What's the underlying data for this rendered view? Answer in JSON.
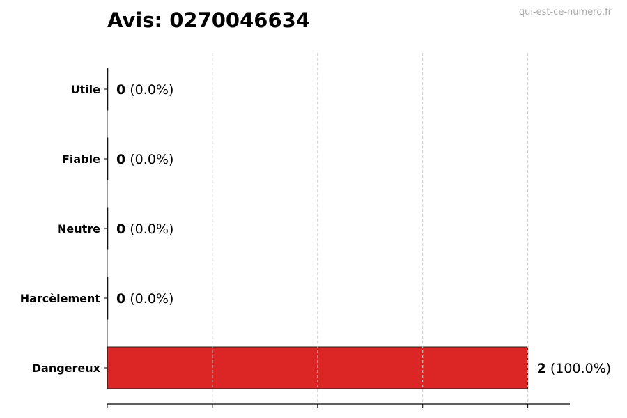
{
  "title": "Avis: 0270046634",
  "watermark": "qui-est-ce-numero.fr",
  "chart_data": {
    "type": "bar",
    "orientation": "horizontal",
    "title": "Avis: 0270046634",
    "categories": [
      "Utile",
      "Fiable",
      "Neutre",
      "Harcèlement",
      "Dangereux"
    ],
    "values": [
      0,
      0,
      0,
      0,
      2
    ],
    "labels": [
      {
        "count": "0",
        "pct": "(0.0%)"
      },
      {
        "count": "0",
        "pct": "(0.0%)"
      },
      {
        "count": "0",
        "pct": "(0.0%)"
      },
      {
        "count": "0",
        "pct": "(0.0%)"
      },
      {
        "count": "2",
        "pct": "(100.0%)"
      }
    ],
    "colors": [
      "#4caf50",
      "#2196f3",
      "#9e9e9e",
      "#ff9800",
      "#dc2626"
    ],
    "xlim": [
      0,
      2.2
    ],
    "xticks": [
      0,
      0.5,
      1,
      1.5,
      2
    ],
    "grid": "x dashed",
    "xlabel": "",
    "ylabel": ""
  }
}
